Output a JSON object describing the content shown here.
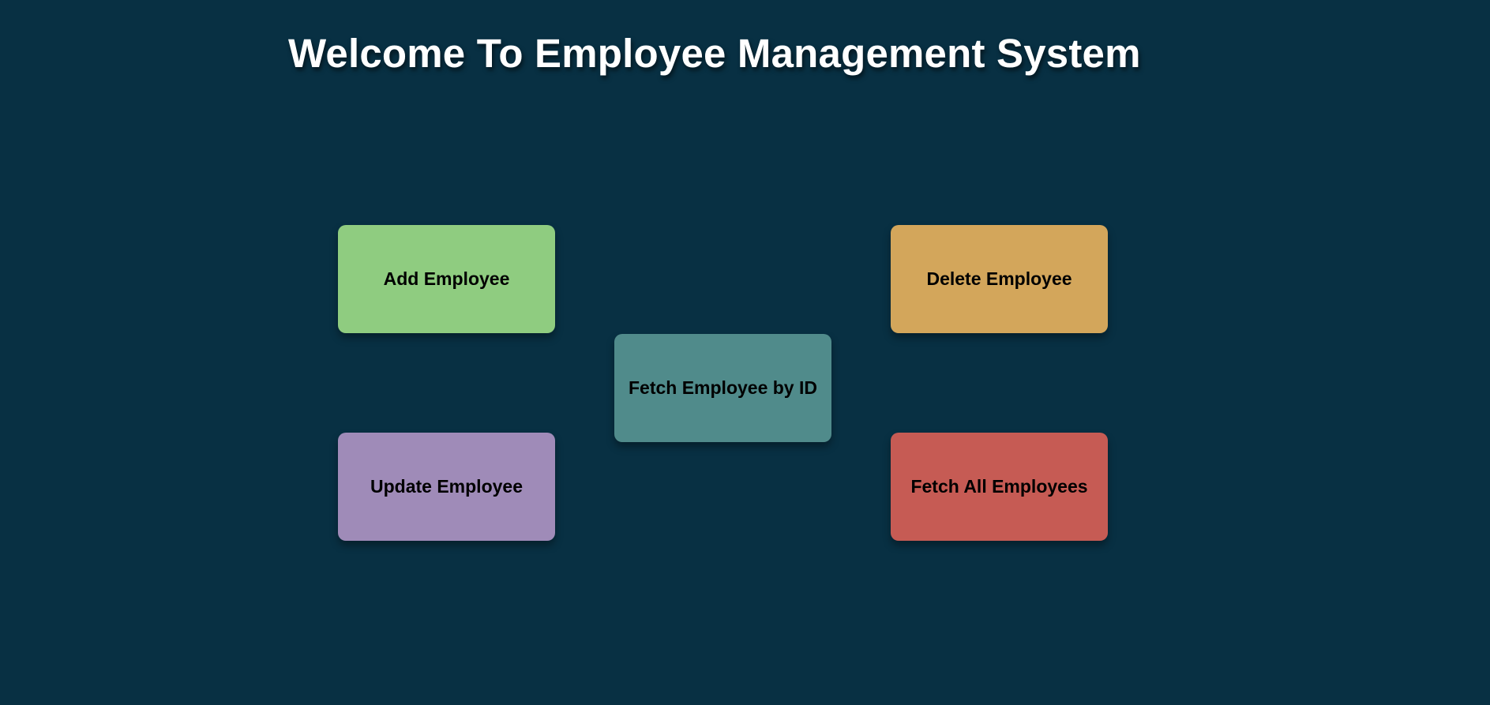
{
  "header": {
    "title": "Welcome To Employee Management System"
  },
  "actions": {
    "add": {
      "label": "Add Employee",
      "color": "#8fcc80"
    },
    "delete": {
      "label": "Delete Employee",
      "color": "#d3a65b"
    },
    "fetch_by_id": {
      "label": "Fetch Employee by ID",
      "color": "#508b8b"
    },
    "update": {
      "label": "Update Employee",
      "color": "#9f8bb8"
    },
    "fetch_all": {
      "label": "Fetch All Employees",
      "color": "#c65b54"
    }
  },
  "theme": {
    "background": "#083043",
    "title_color": "#ffffff"
  }
}
